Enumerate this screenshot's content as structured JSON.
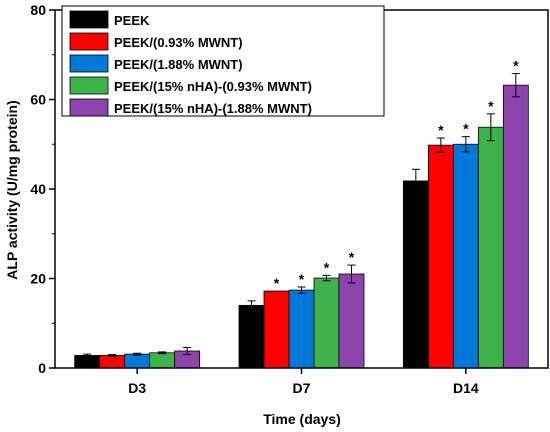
{
  "chart_data": {
    "type": "bar",
    "categories": [
      "D3",
      "D7",
      "D14"
    ],
    "xlabel": "Time (days)",
    "ylabel": "ALP activity (U/mg protein)",
    "ylim": [
      0,
      80
    ],
    "yticks": [
      0,
      20,
      40,
      60,
      80
    ],
    "grid": false,
    "legend_position": "top-left",
    "series": [
      {
        "name": "PEEK",
        "color": "#000000",
        "values": [
          2.8,
          14.0,
          41.8
        ],
        "errors": [
          0.3,
          1.0,
          2.6
        ],
        "significance": [
          "",
          "",
          ""
        ]
      },
      {
        "name": "PEEK/(0.93% MWNT)",
        "color": "#ff0000",
        "values": [
          2.8,
          17.2,
          49.8
        ],
        "errors": [
          0.2,
          0.0,
          1.6
        ],
        "significance": [
          "",
          "*",
          "*"
        ]
      },
      {
        "name": "PEEK/(1.88% MWNT)",
        "color": "#0078d7",
        "values": [
          3.1,
          17.4,
          50.0
        ],
        "errors": [
          0.2,
          0.7,
          1.7
        ],
        "significance": [
          "",
          "*",
          "*"
        ]
      },
      {
        "name": "PEEK/(15% nHA)-(0.93% MWNT)",
        "color": "#3cb44b",
        "values": [
          3.4,
          20.1,
          53.8
        ],
        "errors": [
          0.2,
          0.6,
          3.0
        ],
        "significance": [
          "",
          "*",
          "*"
        ]
      },
      {
        "name": "PEEK/(15% nHA)-(1.88% MWNT)",
        "color": "#8e44ad",
        "values": [
          3.8,
          21.0,
          63.2
        ],
        "errors": [
          0.8,
          2.0,
          2.6
        ],
        "significance": [
          "",
          "*",
          "*"
        ]
      }
    ]
  }
}
